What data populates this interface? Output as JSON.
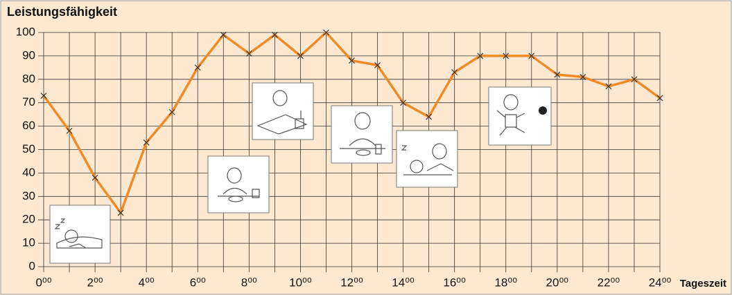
{
  "chart_data": {
    "type": "line",
    "title": "Leistungsfähigkeit",
    "x_label": "Tageszeit",
    "x": [
      0,
      1,
      2,
      3,
      4,
      5,
      6,
      7,
      8,
      9,
      10,
      11,
      12,
      13,
      14,
      15,
      16,
      17,
      18,
      19,
      20,
      21,
      22,
      23,
      24
    ],
    "series": [
      {
        "name": "Leistungsfähigkeit",
        "color": "#f08a24",
        "values": [
          73,
          58,
          38,
          23,
          53,
          66,
          85,
          99,
          91,
          99,
          90,
          100,
          88,
          86,
          70,
          64,
          83,
          90,
          90,
          90,
          82,
          81,
          77,
          80,
          72
        ]
      }
    ],
    "xlim": [
      0,
      24
    ],
    "xticks": [
      {
        "value": 0,
        "label": "0⁰⁰"
      },
      {
        "value": 2,
        "label": "2⁰⁰"
      },
      {
        "value": 4,
        "label": "4⁰⁰"
      },
      {
        "value": 6,
        "label": "6⁰⁰"
      },
      {
        "value": 8,
        "label": "8⁰⁰"
      },
      {
        "value": 10,
        "label": "10⁰⁰"
      },
      {
        "value": 12,
        "label": "12⁰⁰"
      },
      {
        "value": 14,
        "label": "14⁰⁰"
      },
      {
        "value": 16,
        "label": "16⁰⁰"
      },
      {
        "value": 18,
        "label": "18⁰⁰"
      },
      {
        "value": 20,
        "label": "20⁰⁰"
      },
      {
        "value": 22,
        "label": "22⁰⁰"
      },
      {
        "value": 24,
        "label": "24⁰⁰"
      }
    ],
    "x_minor_ticks": [
      1,
      3,
      5,
      7,
      9,
      11,
      13,
      15,
      17,
      19,
      21,
      23
    ],
    "ylim": [
      0,
      100
    ],
    "yticks": [
      0,
      10,
      20,
      30,
      40,
      50,
      60,
      70,
      80,
      90,
      100
    ],
    "grid": true
  }
}
